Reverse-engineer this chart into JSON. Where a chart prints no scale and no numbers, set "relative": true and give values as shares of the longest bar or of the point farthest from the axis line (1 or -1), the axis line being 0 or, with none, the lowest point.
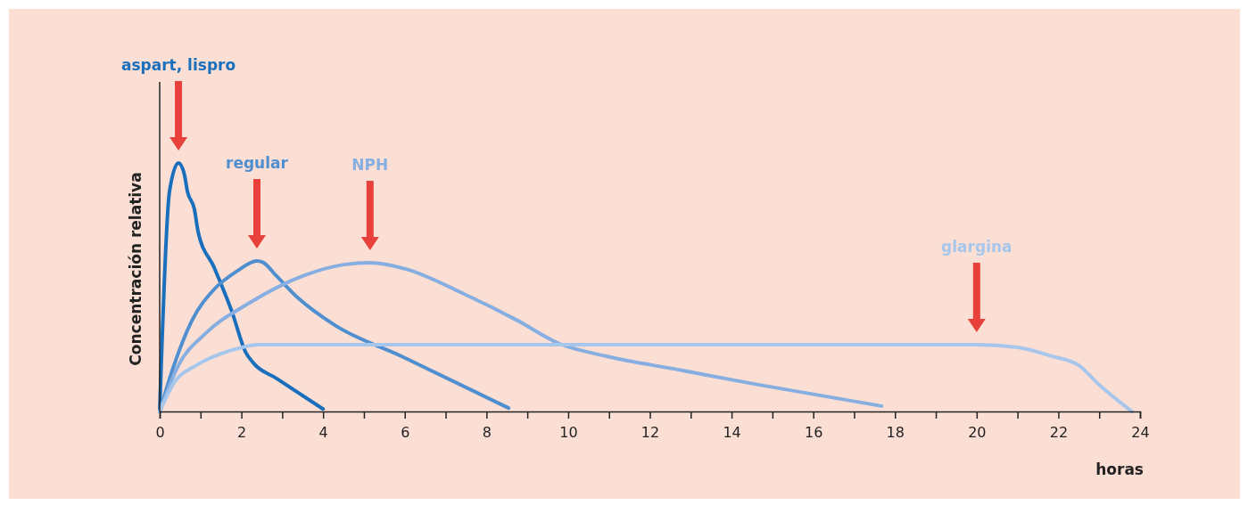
{
  "chart_data": {
    "type": "line",
    "relative": true,
    "xlabel": "horas",
    "ylabel": "Concentración relativa",
    "xlim": [
      0,
      24
    ],
    "xticks": [
      0,
      {
        "value": 1,
        "label": null
      },
      2,
      {
        "value": 3,
        "label": null
      },
      4,
      {
        "value": 5,
        "label": null
      },
      6,
      {
        "value": 7,
        "label": null
      },
      8,
      {
        "value": 9,
        "label": null
      },
      10,
      {
        "value": 11,
        "label": null
      },
      12,
      {
        "value": 13,
        "label": null
      },
      14,
      {
        "value": 15,
        "label": null
      },
      16,
      {
        "value": 17,
        "label": null
      },
      18,
      {
        "value": 19,
        "label": null
      },
      20,
      {
        "value": 21,
        "label": null
      },
      22,
      {
        "value": 23,
        "label": null
      },
      24
    ],
    "grid": false,
    "legend": false,
    "marker": "none",
    "line_style": "solid",
    "series": [
      {
        "name": "aspart, lispro",
        "color": "#1a6fbd",
        "x": [
          0,
          0.24,
          0.46,
          0.6,
          0.68,
          0.85,
          0.94,
          1.33,
          1.77,
          2.1,
          2.3,
          2.86,
          4.0
        ],
        "values": [
          0,
          0.885,
          1.0,
          0.957,
          0.885,
          0.814,
          0.724,
          0.581,
          0.401,
          0.24,
          0.194,
          0.133,
          0.01
        ]
      },
      {
        "name": "regular",
        "color": "#4f8fd0",
        "x": [
          0,
          0.35,
          0.79,
          1.33,
          1.88,
          2.38,
          2.53,
          2.86,
          3.4,
          4.28,
          5.92,
          8.54
        ],
        "values": [
          0,
          0.186,
          0.366,
          0.491,
          0.563,
          0.606,
          0.6,
          0.545,
          0.455,
          0.348,
          0.222,
          0.014
        ]
      },
      {
        "name": "NPH",
        "color": "#86aee0",
        "x": [
          0,
          0.46,
          1.11,
          2.2,
          3.5,
          4.5,
          5.15,
          6.03,
          7.45,
          8.76,
          9.74,
          10.94,
          12.7,
          14.65,
          17.67
        ],
        "values": [
          0,
          0.186,
          0.312,
          0.437,
          0.545,
          0.591,
          0.599,
          0.573,
          0.473,
          0.366,
          0.276,
          0.222,
          0.168,
          0.108,
          0.022
        ]
      },
      {
        "name": "glargina",
        "color": "#a6c6ec",
        "x": [
          0,
          0.35,
          0.9,
          1.77,
          2.42,
          20,
          21,
          21.85,
          22.5,
          22.95,
          23.8
        ],
        "values": [
          0,
          0.115,
          0.186,
          0.247,
          0.269,
          0.269,
          0.258,
          0.222,
          0.186,
          0.115,
          0
        ]
      }
    ]
  }
}
